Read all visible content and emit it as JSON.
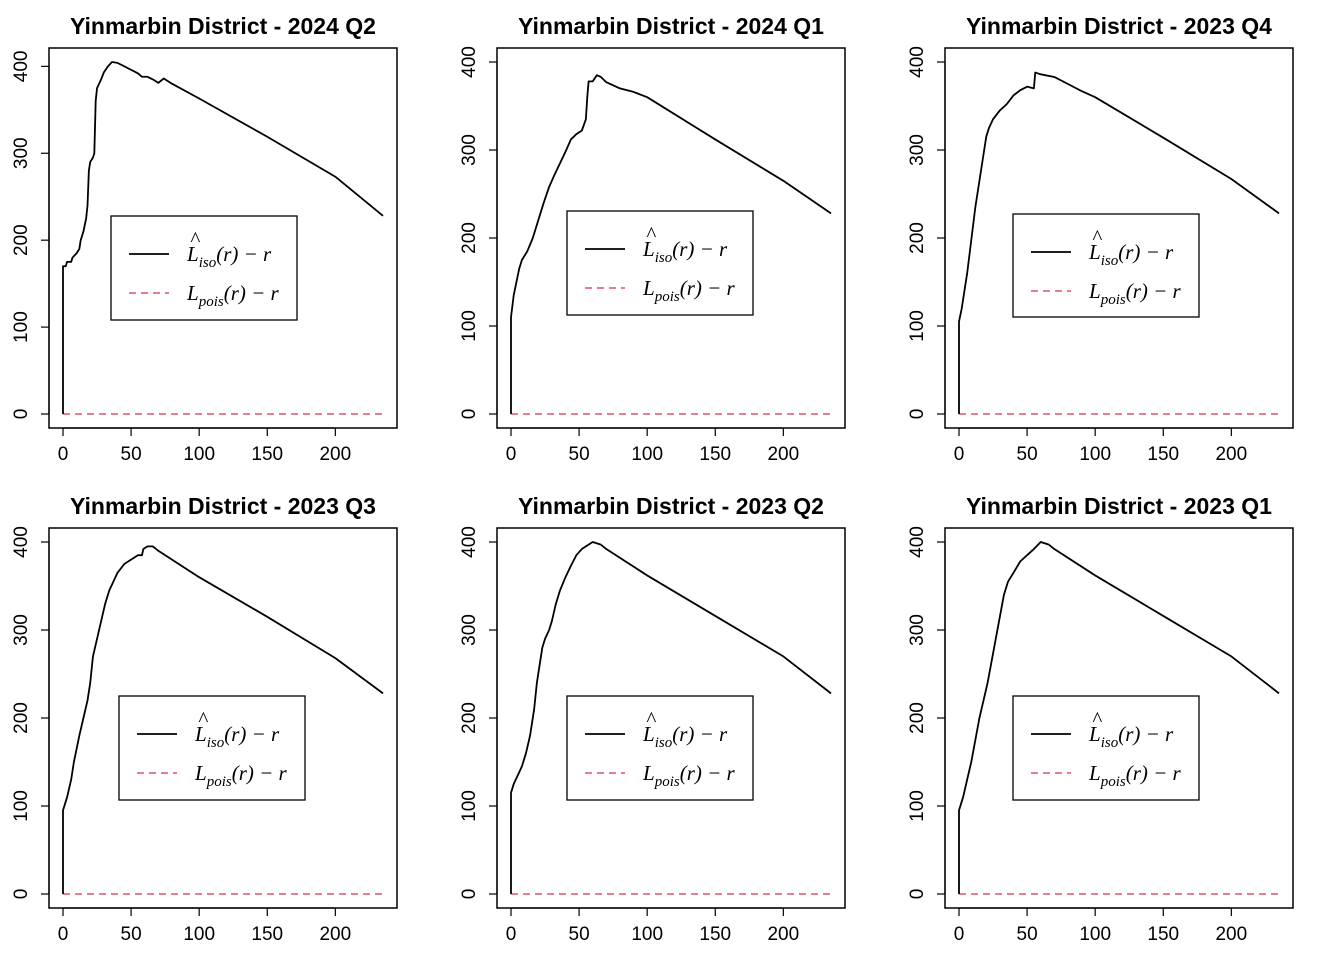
{
  "legend": {
    "hat_symbol": "^",
    "estimate": {
      "letter": "L",
      "subscript": "iso",
      "suffix": "(r) − r",
      "color": "#000000"
    },
    "theoretical": {
      "letter": "L",
      "subscript": "pois",
      "suffix": "(r) − r",
      "color": "#DF536B"
    }
  },
  "colors": {
    "estimate": "#000000",
    "theoretical": "#DF536B"
  },
  "chart_data": [
    {
      "type": "line",
      "title": "Yinmarbin District - 2024 Q2",
      "xlim": [
        0,
        235
      ],
      "ylim": [
        0,
        405
      ],
      "x_ticks": [
        0,
        50,
        100,
        150,
        200
      ],
      "y_ticks": [
        0,
        100,
        200,
        300,
        400
      ],
      "series": [
        {
          "points": [
            [
              0,
              0
            ],
            [
              0,
              170
            ],
            [
              2,
              170
            ],
            [
              3,
              175
            ],
            [
              6,
              175
            ],
            [
              7,
              180
            ],
            [
              10,
              185
            ],
            [
              12,
              190
            ],
            [
              13,
              200
            ],
            [
              15,
              210
            ],
            [
              17,
              225
            ],
            [
              18,
              240
            ],
            [
              19,
              280
            ],
            [
              20,
              290
            ],
            [
              22,
              295
            ],
            [
              23,
              300
            ],
            [
              24,
              360
            ],
            [
              25,
              375
            ],
            [
              28,
              385
            ],
            [
              30,
              393
            ],
            [
              33,
              400
            ],
            [
              36,
              405
            ],
            [
              40,
              404
            ],
            [
              45,
              400
            ],
            [
              50,
              396
            ],
            [
              55,
              392
            ],
            [
              58,
              388
            ],
            [
              62,
              388
            ],
            [
              66,
              385
            ],
            [
              70,
              381
            ],
            [
              74,
              386
            ],
            [
              80,
              380
            ],
            [
              100,
              363
            ],
            [
              150,
              319
            ],
            [
              200,
              273
            ],
            [
              235,
              228
            ]
          ]
        },
        {
          "points": [
            [
              0,
              0
            ],
            [
              235,
              0
            ]
          ]
        }
      ]
    },
    {
      "type": "line",
      "title": "Yinmarbin District - 2024 Q1",
      "xlim": [
        0,
        235
      ],
      "ylim": [
        0,
        400
      ],
      "x_ticks": [
        0,
        50,
        100,
        150,
        200
      ],
      "y_ticks": [
        0,
        100,
        200,
        300,
        400
      ],
      "series": [
        {
          "points": [
            [
              0,
              0
            ],
            [
              0,
              110
            ],
            [
              2,
              135
            ],
            [
              4,
              150
            ],
            [
              6,
              165
            ],
            [
              8,
              175
            ],
            [
              12,
              185
            ],
            [
              16,
              200
            ],
            [
              20,
              220
            ],
            [
              24,
              240
            ],
            [
              28,
              258
            ],
            [
              32,
              272
            ],
            [
              36,
              285
            ],
            [
              40,
              298
            ],
            [
              44,
              312
            ],
            [
              48,
              318
            ],
            [
              52,
              322
            ],
            [
              55,
              335
            ],
            [
              56,
              360
            ],
            [
              57,
              378
            ],
            [
              60,
              378
            ],
            [
              63,
              385
            ],
            [
              66,
              383
            ],
            [
              70,
              377
            ],
            [
              80,
              370
            ],
            [
              90,
              366
            ],
            [
              100,
              360
            ],
            [
              150,
              312
            ],
            [
              200,
              265
            ],
            [
              235,
              228
            ]
          ]
        },
        {
          "points": [
            [
              0,
              0
            ],
            [
              235,
              0
            ]
          ]
        }
      ]
    },
    {
      "type": "line",
      "title": "Yinmarbin District - 2023 Q4",
      "xlim": [
        0,
        235
      ],
      "ylim": [
        0,
        400
      ],
      "x_ticks": [
        0,
        50,
        100,
        150,
        200
      ],
      "y_ticks": [
        0,
        100,
        200,
        300,
        400
      ],
      "series": [
        {
          "points": [
            [
              0,
              0
            ],
            [
              0,
              105
            ],
            [
              2,
              120
            ],
            [
              4,
              140
            ],
            [
              6,
              160
            ],
            [
              8,
              185
            ],
            [
              10,
              210
            ],
            [
              12,
              235
            ],
            [
              14,
              255
            ],
            [
              16,
              275
            ],
            [
              18,
              295
            ],
            [
              20,
              315
            ],
            [
              22,
              325
            ],
            [
              25,
              335
            ],
            [
              30,
              345
            ],
            [
              35,
              352
            ],
            [
              40,
              362
            ],
            [
              45,
              368
            ],
            [
              50,
              372
            ],
            [
              55,
              370
            ],
            [
              56,
              388
            ],
            [
              60,
              386
            ],
            [
              70,
              383
            ],
            [
              80,
              375
            ],
            [
              90,
              367
            ],
            [
              100,
              360
            ],
            [
              150,
              314
            ],
            [
              200,
              267
            ],
            [
              235,
              228
            ]
          ]
        },
        {
          "points": [
            [
              0,
              0
            ],
            [
              235,
              0
            ]
          ]
        }
      ]
    },
    {
      "type": "line",
      "title": "Yinmarbin District - 2023 Q3",
      "xlim": [
        0,
        235
      ],
      "ylim": [
        0,
        400
      ],
      "x_ticks": [
        0,
        50,
        100,
        150,
        200
      ],
      "y_ticks": [
        0,
        100,
        200,
        300,
        400
      ],
      "series": [
        {
          "points": [
            [
              0,
              0
            ],
            [
              0,
              95
            ],
            [
              3,
              110
            ],
            [
              6,
              130
            ],
            [
              8,
              150
            ],
            [
              10,
              165
            ],
            [
              12,
              180
            ],
            [
              15,
              200
            ],
            [
              18,
              220
            ],
            [
              20,
              240
            ],
            [
              22,
              270
            ],
            [
              25,
              290
            ],
            [
              28,
              310
            ],
            [
              31,
              330
            ],
            [
              34,
              345
            ],
            [
              37,
              355
            ],
            [
              40,
              365
            ],
            [
              45,
              375
            ],
            [
              50,
              380
            ],
            [
              55,
              385
            ],
            [
              58,
              385
            ],
            [
              59,
              392
            ],
            [
              62,
              395
            ],
            [
              66,
              395
            ],
            [
              70,
              390
            ],
            [
              100,
              360
            ],
            [
              150,
              315
            ],
            [
              200,
              268
            ],
            [
              235,
              228
            ]
          ]
        },
        {
          "points": [
            [
              0,
              0
            ],
            [
              235,
              0
            ]
          ]
        }
      ]
    },
    {
      "type": "line",
      "title": "Yinmarbin District - 2023 Q2",
      "xlim": [
        0,
        235
      ],
      "ylim": [
        0,
        400
      ],
      "x_ticks": [
        0,
        50,
        100,
        150,
        200
      ],
      "y_ticks": [
        0,
        100,
        200,
        300,
        400
      ],
      "series": [
        {
          "points": [
            [
              0,
              0
            ],
            [
              0,
              115
            ],
            [
              2,
              125
            ],
            [
              5,
              135
            ],
            [
              8,
              145
            ],
            [
              11,
              160
            ],
            [
              14,
              180
            ],
            [
              17,
              210
            ],
            [
              19,
              240
            ],
            [
              21,
              260
            ],
            [
              23,
              280
            ],
            [
              25,
              290
            ],
            [
              28,
              300
            ],
            [
              30,
              310
            ],
            [
              33,
              330
            ],
            [
              36,
              345
            ],
            [
              40,
              360
            ],
            [
              44,
              373
            ],
            [
              48,
              385
            ],
            [
              52,
              392
            ],
            [
              56,
              396
            ],
            [
              60,
              400
            ],
            [
              66,
              397
            ],
            [
              70,
              392
            ],
            [
              100,
              362
            ],
            [
              150,
              316
            ],
            [
              200,
              270
            ],
            [
              235,
              228
            ]
          ]
        },
        {
          "points": [
            [
              0,
              0
            ],
            [
              235,
              0
            ]
          ]
        }
      ]
    },
    {
      "type": "line",
      "title": "Yinmarbin District - 2023 Q1",
      "xlim": [
        0,
        235
      ],
      "ylim": [
        0,
        400
      ],
      "x_ticks": [
        0,
        50,
        100,
        150,
        200
      ],
      "y_ticks": [
        0,
        100,
        200,
        300,
        400
      ],
      "series": [
        {
          "points": [
            [
              0,
              0
            ],
            [
              0,
              95
            ],
            [
              3,
              110
            ],
            [
              6,
              130
            ],
            [
              9,
              150
            ],
            [
              12,
              175
            ],
            [
              15,
              200
            ],
            [
              18,
              220
            ],
            [
              21,
              240
            ],
            [
              24,
              265
            ],
            [
              27,
              290
            ],
            [
              30,
              315
            ],
            [
              33,
              340
            ],
            [
              36,
              355
            ],
            [
              40,
              365
            ],
            [
              45,
              378
            ],
            [
              50,
              385
            ],
            [
              55,
              392
            ],
            [
              60,
              400
            ],
            [
              66,
              397
            ],
            [
              70,
              392
            ],
            [
              100,
              362
            ],
            [
              150,
              316
            ],
            [
              200,
              270
            ],
            [
              235,
              228
            ]
          ]
        },
        {
          "points": [
            [
              0,
              0
            ],
            [
              235,
              0
            ]
          ]
        }
      ]
    }
  ]
}
